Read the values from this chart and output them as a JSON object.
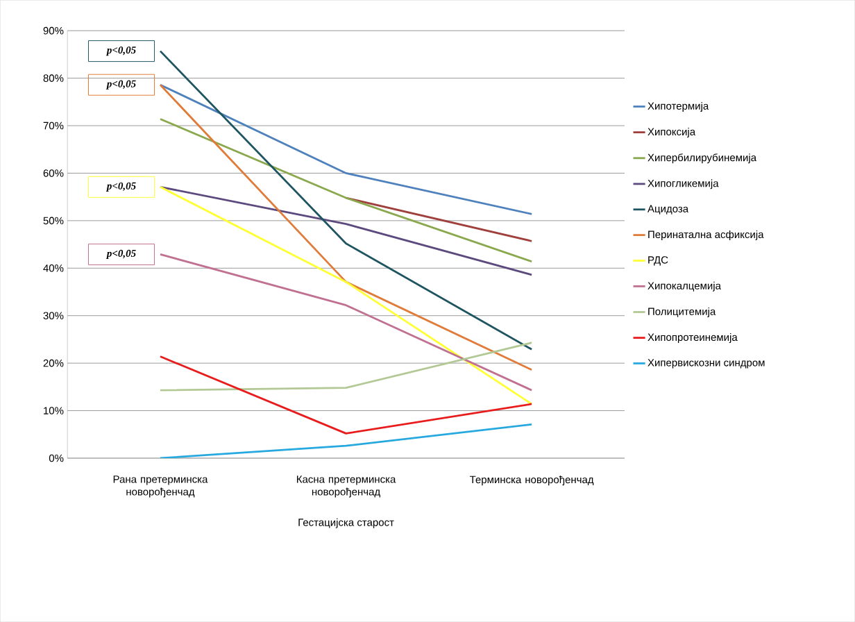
{
  "chart_data": {
    "type": "line",
    "xlabel": "Гестацијска старост",
    "categories": [
      "Рана претерминска новорођенчад",
      "Касна претерминска новорођенчад",
      "Терминска новорођенчад"
    ],
    "series": [
      {
        "name": "Хипотермија",
        "color": "#4f81bd",
        "values": [
          78.6,
          60,
          51.4
        ]
      },
      {
        "name": "Хипоксија",
        "color": "#a0403d",
        "values": [
          null,
          54.8,
          45.7
        ]
      },
      {
        "name": "Хипербилирубинемија",
        "color": "#8aa84d",
        "values": [
          71.4,
          54.8,
          41.4
        ]
      },
      {
        "name": "Хипогликемија",
        "color": "#5c4a7e",
        "values": [
          57.1,
          49.3,
          38.6
        ]
      },
      {
        "name": "Ацидоза",
        "color": "#1f5560",
        "values": [
          85.7,
          45.2,
          22.9
        ]
      },
      {
        "name": "Перинатална асфиксија",
        "color": "#e07b39",
        "values": [
          78.6,
          37.1,
          18.6
        ]
      },
      {
        "name": "РДС",
        "color": "#ffff33",
        "values": [
          57.1,
          37.1,
          11.4
        ]
      },
      {
        "name": "Хипокалцемија",
        "color": "#c07090",
        "values": [
          42.9,
          32.2,
          14.3
        ]
      },
      {
        "name": "Полицитемија",
        "color": "#b2c995",
        "values": [
          14.3,
          14.8,
          24.3
        ]
      },
      {
        "name": "Хипопротеинемија",
        "color": "#e81c1c",
        "values": [
          21.4,
          5.2,
          11.4
        ]
      },
      {
        "name": "Хипервискозни синдром",
        "color": "#27a9e0",
        "values": [
          0,
          2.6,
          7.1
        ]
      }
    ],
    "ylim": [
      0,
      90
    ],
    "yticks": [
      {
        "value": 0,
        "label": "0%"
      },
      {
        "value": 10,
        "label": "10%"
      },
      {
        "value": 20,
        "label": "20%"
      },
      {
        "value": 30,
        "label": "30%"
      },
      {
        "value": 40,
        "label": "40%"
      },
      {
        "value": 50,
        "label": "50%"
      },
      {
        "value": 60,
        "label": "60%"
      },
      {
        "value": 70,
        "label": "70%"
      },
      {
        "value": 80,
        "label": "80%"
      },
      {
        "value": 90,
        "label": "90%"
      }
    ],
    "annotations": [
      {
        "text": "p<0,05",
        "x": "Рана претерминска новорођенчад",
        "y": 85.7
      },
      {
        "text": "p<0,05",
        "x": "Рана претерминска новорођенчад",
        "y": 78.6
      },
      {
        "text": "p<0,05",
        "x": "Рана претерминска новорођенчад",
        "y": 57.1
      },
      {
        "text": "p<0,05",
        "x": "Рана претерминска новорођенчад",
        "y": 42.9
      }
    ],
    "grid": "y",
    "legend": "right",
    "marker": "none",
    "line_style": "solid"
  }
}
